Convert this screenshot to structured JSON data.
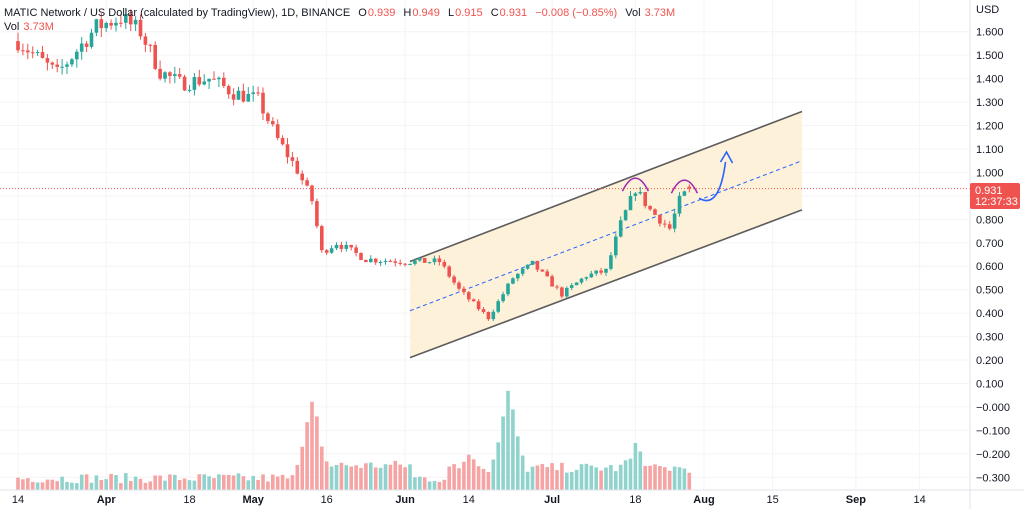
{
  "legend": {
    "symbol": "MATIC Network / US Dollar (calculated by TradingView), 1D, BINANCE",
    "o_label": "O",
    "o": "0.939",
    "h_label": "H",
    "h": "0.949",
    "l_label": "L",
    "l": "0.915",
    "c_label": "C",
    "c": "0.931",
    "change": "−0.008 (−0.85%)",
    "vol_label": "Vol",
    "vol": "3.73M",
    "vol2_label": "Vol",
    "vol2": "3.73M"
  },
  "price_axis": {
    "currency": "USD",
    "ticks": [
      "1.600",
      "1.500",
      "1.400",
      "1.300",
      "1.200",
      "1.100",
      "1.000",
      "0.900",
      "0.800",
      "0.700",
      "0.600",
      "0.500",
      "0.400",
      "0.300",
      "0.200",
      "0.100",
      "−0.000",
      "−0.100",
      "−0.200",
      "−0.300"
    ],
    "last_price": "0.931",
    "countdown": "12:37:33"
  },
  "time_axis": {
    "labels": [
      "14",
      "Apr",
      "18",
      "May",
      "16",
      "Jun",
      "14",
      "Jul",
      "18",
      "Aug",
      "15",
      "Sep",
      "14"
    ]
  },
  "colors": {
    "up": "#26a69a",
    "down": "#ef5350",
    "up_vol": "#8fd3cc",
    "down_vol": "#f5a3a3",
    "channel_fill": "#fdf1d9",
    "channel_line": "#5d5d5d",
    "midline": "#2962ff",
    "arc": "#9c27b0",
    "arrow": "#2962ff"
  },
  "chart_data": {
    "type": "candlestick",
    "symbol": "MATIC/USD",
    "interval": "1D",
    "ylim": [
      -0.33,
      1.75
    ],
    "last_price": 0.931,
    "anchors": [
      {
        "date": "Mar 14",
        "price": 1.56
      },
      {
        "date": "Mar 22",
        "price": 1.42
      },
      {
        "date": "Mar 30",
        "price": 1.62
      },
      {
        "date": "Apr 4",
        "price": 1.66
      },
      {
        "date": "Apr 8",
        "price": 1.6
      },
      {
        "date": "Apr 12",
        "price": 1.43
      },
      {
        "date": "Apr 16",
        "price": 1.38
      },
      {
        "date": "Apr 22",
        "price": 1.4
      },
      {
        "date": "Apr 27",
        "price": 1.34
      },
      {
        "date": "May 2",
        "price": 1.31
      },
      {
        "date": "May 6",
        "price": 1.14
      },
      {
        "date": "May 10",
        "price": 1.01
      },
      {
        "date": "May 13",
        "price": 0.88
      },
      {
        "date": "May 15",
        "price": 0.66
      },
      {
        "date": "May 18",
        "price": 0.7
      },
      {
        "date": "May 24",
        "price": 0.63
      },
      {
        "date": "Jun 1",
        "price": 0.62
      },
      {
        "date": "Jun 8",
        "price": 0.62
      },
      {
        "date": "Jun 12",
        "price": 0.5
      },
      {
        "date": "Jun 18",
        "price": 0.38
      },
      {
        "date": "Jun 23",
        "price": 0.55
      },
      {
        "date": "Jun 27",
        "price": 0.61
      },
      {
        "date": "Jul 3",
        "price": 0.48
      },
      {
        "date": "Jul 8",
        "price": 0.56
      },
      {
        "date": "Jul 12",
        "price": 0.58
      },
      {
        "date": "Jul 15",
        "price": 0.78
      },
      {
        "date": "Jul 18",
        "price": 0.93
      },
      {
        "date": "Jul 21",
        "price": 0.84
      },
      {
        "date": "Jul 25",
        "price": 0.76
      },
      {
        "date": "Jul 27",
        "price": 0.88
      },
      {
        "date": "Jul 29",
        "price": 0.931
      }
    ],
    "channel": {
      "upper": [
        {
          "date": "Jun 2",
          "price": 0.62
        },
        {
          "date": "Aug 21",
          "price": 1.26
        }
      ],
      "lower": [
        {
          "date": "Jun 2",
          "price": 0.21
        },
        {
          "date": "Aug 21",
          "price": 0.84
        }
      ],
      "mid": [
        {
          "date": "Jun 2",
          "price": 0.41
        },
        {
          "date": "Aug 21",
          "price": 1.05
        }
      ]
    },
    "volume_spikes": [
      {
        "date": "May 13",
        "value": 1.0
      },
      {
        "date": "Jun 14",
        "value": 0.48
      },
      {
        "date": "Jun 22",
        "value": 1.13
      },
      {
        "date": "Jul 18",
        "value": 0.55
      }
    ]
  }
}
